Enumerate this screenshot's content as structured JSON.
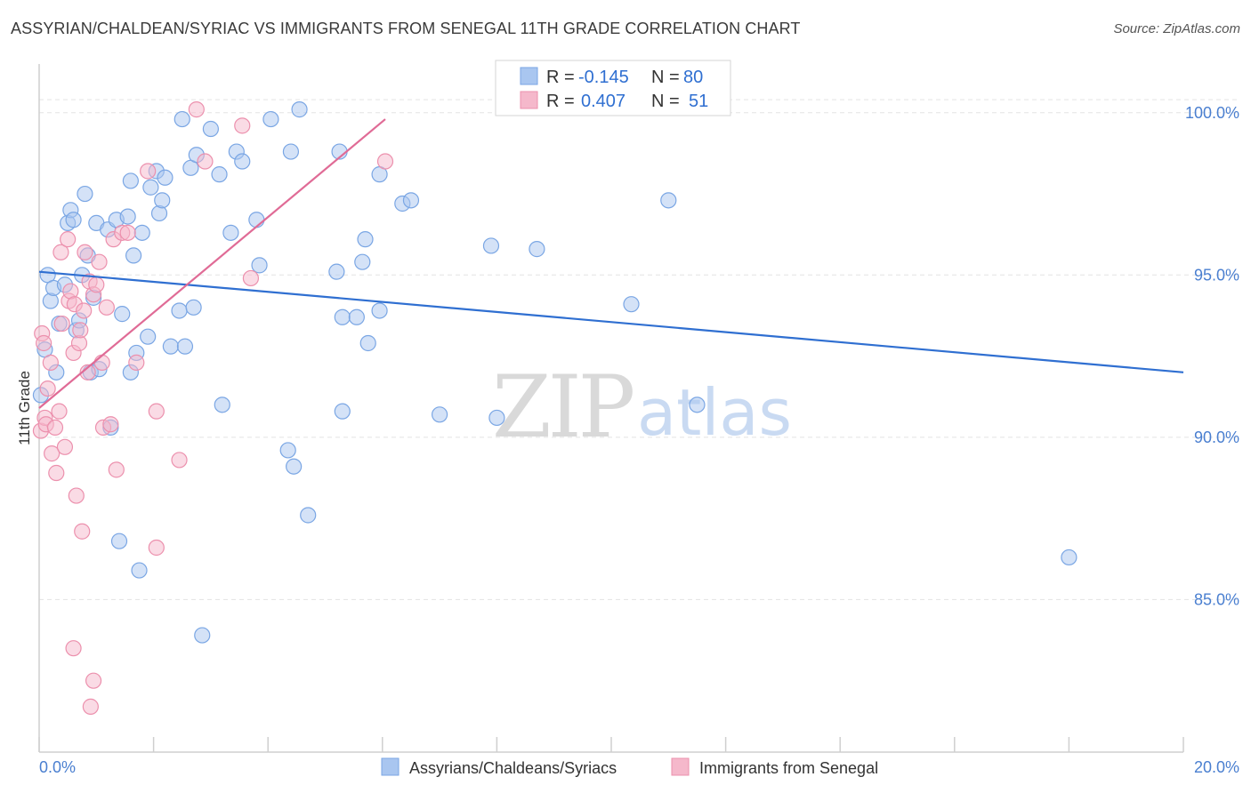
{
  "header": {
    "title": "ASSYRIAN/CHALDEAN/SYRIAC VS IMMIGRANTS FROM SENEGAL 11TH GRADE CORRELATION CHART",
    "source": "Source: ZipAtlas.com"
  },
  "watermark": {
    "zip": "ZIP",
    "atlas": "atlas"
  },
  "legend": {
    "r_label": "R =",
    "n_label": "N =",
    "rows": [
      {
        "r": "-0.145",
        "n": "80",
        "color": "#a9c6f0"
      },
      {
        "r": "0.407",
        "n": "51",
        "color": "#f5b8cb"
      }
    ]
  },
  "colors": {
    "blue_fill": "#a9c6f0",
    "blue_stroke": "#7aa6e4",
    "blue_line": "#2f6fd1",
    "pink_fill": "#f5b8cb",
    "pink_stroke": "#ec90ad",
    "pink_line": "#e06b96",
    "grid": "#e3e3e3",
    "axis": "#cfcfcf",
    "tick_text": "#4a7fd0"
  },
  "chart_data": {
    "type": "scatter",
    "title": "ASSYRIAN/CHALDEAN/SYRIAC VS IMMIGRANTS FROM SENEGAL 11TH GRADE CORRELATION CHART",
    "xlabel": "",
    "ylabel": "11th Grade",
    "xlim": [
      0,
      20
    ],
    "ylim": [
      80.3,
      101.5
    ],
    "x_tick_labels": [
      "0.0%",
      "20.0%"
    ],
    "y_ticks": [
      85,
      90,
      95,
      100
    ],
    "y_tick_labels": [
      "85.0%",
      "90.0%",
      "95.0%",
      "100.0%"
    ],
    "series": [
      {
        "name": "Assyrians/Chaldeans/Syriacs",
        "color": "#a9c6f0",
        "trend": {
          "x": [
            0,
            20
          ],
          "y": [
            95.1,
            92.0
          ]
        },
        "points": [
          [
            0.03,
            91.3
          ],
          [
            0.1,
            92.7
          ],
          [
            0.15,
            95.0
          ],
          [
            0.2,
            94.2
          ],
          [
            0.25,
            94.6
          ],
          [
            0.3,
            92.0
          ],
          [
            0.35,
            93.5
          ],
          [
            0.45,
            94.7
          ],
          [
            0.5,
            96.6
          ],
          [
            0.55,
            97.0
          ],
          [
            0.6,
            96.7
          ],
          [
            0.65,
            93.3
          ],
          [
            0.7,
            93.6
          ],
          [
            0.75,
            95.0
          ],
          [
            0.8,
            97.5
          ],
          [
            0.85,
            95.6
          ],
          [
            0.9,
            92.0
          ],
          [
            0.95,
            94.3
          ],
          [
            1.0,
            96.6
          ],
          [
            1.05,
            92.1
          ],
          [
            1.2,
            96.4
          ],
          [
            1.25,
            90.3
          ],
          [
            1.35,
            96.7
          ],
          [
            1.4,
            86.8
          ],
          [
            1.45,
            93.8
          ],
          [
            1.55,
            96.8
          ],
          [
            1.6,
            97.9
          ],
          [
            1.65,
            95.6
          ],
          [
            1.7,
            92.6
          ],
          [
            1.75,
            85.9
          ],
          [
            1.8,
            96.3
          ],
          [
            1.9,
            93.1
          ],
          [
            1.95,
            97.7
          ],
          [
            2.05,
            98.2
          ],
          [
            2.1,
            96.9
          ],
          [
            2.15,
            97.3
          ],
          [
            2.2,
            98.0
          ],
          [
            2.3,
            92.8
          ],
          [
            2.45,
            93.9
          ],
          [
            2.5,
            99.8
          ],
          [
            2.55,
            92.8
          ],
          [
            2.65,
            98.3
          ],
          [
            2.7,
            94.0
          ],
          [
            2.75,
            98.7
          ],
          [
            2.85,
            83.9
          ],
          [
            3.0,
            99.5
          ],
          [
            3.15,
            98.1
          ],
          [
            3.2,
            91.0
          ],
          [
            3.35,
            96.3
          ],
          [
            3.45,
            98.8
          ],
          [
            3.55,
            98.5
          ],
          [
            3.8,
            96.7
          ],
          [
            3.85,
            95.3
          ],
          [
            4.05,
            99.8
          ],
          [
            4.35,
            89.6
          ],
          [
            4.4,
            98.8
          ],
          [
            4.45,
            89.1
          ],
          [
            4.55,
            100.1
          ],
          [
            4.7,
            87.6
          ],
          [
            5.2,
            95.1
          ],
          [
            5.25,
            98.8
          ],
          [
            5.3,
            93.7
          ],
          [
            5.3,
            90.8
          ],
          [
            5.55,
            93.7
          ],
          [
            5.65,
            95.4
          ],
          [
            5.7,
            96.1
          ],
          [
            5.75,
            92.9
          ],
          [
            5.95,
            93.9
          ],
          [
            5.95,
            98.1
          ],
          [
            6.35,
            97.2
          ],
          [
            6.5,
            97.3
          ],
          [
            7.0,
            90.7
          ],
          [
            7.9,
            95.9
          ],
          [
            8.0,
            90.6
          ],
          [
            8.7,
            95.8
          ],
          [
            10.35,
            94.1
          ],
          [
            11.0,
            97.3
          ],
          [
            11.5,
            91.0
          ],
          [
            18.0,
            86.3
          ],
          [
            1.6,
            92.0
          ]
        ]
      },
      {
        "name": "Immigrants from Senegal",
        "color": "#f5b8cb",
        "trend": {
          "x": [
            0,
            6.05
          ],
          "y": [
            90.9,
            99.8
          ]
        },
        "points": [
          [
            0.03,
            90.2
          ],
          [
            0.05,
            93.2
          ],
          [
            0.08,
            92.9
          ],
          [
            0.1,
            90.6
          ],
          [
            0.12,
            90.4
          ],
          [
            0.15,
            91.5
          ],
          [
            0.2,
            92.3
          ],
          [
            0.22,
            89.5
          ],
          [
            0.28,
            90.3
          ],
          [
            0.3,
            88.9
          ],
          [
            0.35,
            90.8
          ],
          [
            0.38,
            95.7
          ],
          [
            0.4,
            93.5
          ],
          [
            0.45,
            89.7
          ],
          [
            0.5,
            96.1
          ],
          [
            0.52,
            94.2
          ],
          [
            0.55,
            94.5
          ],
          [
            0.6,
            92.6
          ],
          [
            0.62,
            94.1
          ],
          [
            0.65,
            88.2
          ],
          [
            0.7,
            92.9
          ],
          [
            0.72,
            93.3
          ],
          [
            0.75,
            87.1
          ],
          [
            0.78,
            93.9
          ],
          [
            0.8,
            95.7
          ],
          [
            0.85,
            92.0
          ],
          [
            0.88,
            94.8
          ],
          [
            0.9,
            81.7
          ],
          [
            0.95,
            94.4
          ],
          [
            1.0,
            94.7
          ],
          [
            1.05,
            95.4
          ],
          [
            1.1,
            92.3
          ],
          [
            1.12,
            90.3
          ],
          [
            1.18,
            94.0
          ],
          [
            1.25,
            90.4
          ],
          [
            1.3,
            96.1
          ],
          [
            1.35,
            89.0
          ],
          [
            1.45,
            96.3
          ],
          [
            1.55,
            96.3
          ],
          [
            1.7,
            92.3
          ],
          [
            1.9,
            98.2
          ],
          [
            2.05,
            90.8
          ],
          [
            2.05,
            86.6
          ],
          [
            2.45,
            89.3
          ],
          [
            2.75,
            100.1
          ],
          [
            2.9,
            98.5
          ],
          [
            3.55,
            99.6
          ],
          [
            3.7,
            94.9
          ],
          [
            6.05,
            98.5
          ],
          [
            0.6,
            83.5
          ],
          [
            0.95,
            82.5
          ]
        ]
      }
    ]
  },
  "bottom_legend": [
    {
      "label": "Assyrians/Chaldeans/Syriacs",
      "color": "#a9c6f0"
    },
    {
      "label": "Immigrants from Senegal",
      "color": "#f5b8cb"
    }
  ]
}
